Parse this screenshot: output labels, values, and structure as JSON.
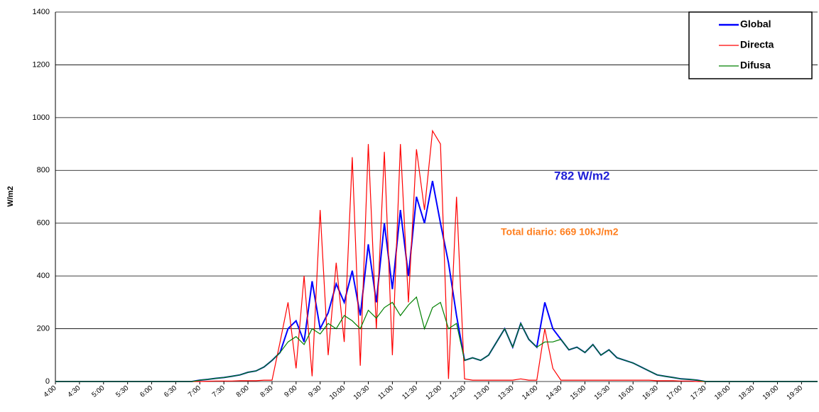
{
  "chart_data": {
    "type": "line",
    "y_label": "W/m2",
    "annotations": [
      "782  W/m2",
      "Total diario:  669  10kJ/m2"
    ],
    "categories": [
      "4:00",
      null,
      null,
      "4:30",
      null,
      null,
      "5:00",
      null,
      null,
      "5:30",
      null,
      null,
      "6:00",
      null,
      null,
      "6:30",
      null,
      null,
      "7:00",
      null,
      null,
      "7:30",
      null,
      null,
      "8:00",
      null,
      null,
      "8:30",
      null,
      null,
      "9:00",
      null,
      null,
      "9:30",
      null,
      null,
      "10:00",
      null,
      null,
      "10:30",
      null,
      null,
      "11:00",
      null,
      null,
      "11:30",
      null,
      null,
      "12:00",
      null,
      null,
      "12:30",
      null,
      null,
      "13:00",
      null,
      null,
      "13:30",
      null,
      null,
      "14:00",
      null,
      null,
      "14:30",
      null,
      null,
      "15:00",
      null,
      null,
      "15:30",
      null,
      null,
      "16:00",
      null,
      null,
      "16:30",
      null,
      null,
      "17:00",
      null,
      null,
      "17:30",
      null,
      null,
      "18:00",
      null,
      null,
      "18:30",
      null,
      null,
      "19:00",
      null,
      null,
      "19:30",
      null,
      null
    ],
    "series": [
      {
        "name": "Global",
        "color": "#0000ff",
        "values": [
          0,
          0,
          0,
          0,
          0,
          0,
          0,
          0,
          0,
          0,
          0,
          0,
          0,
          0,
          0,
          0,
          0,
          0,
          5,
          8,
          12,
          15,
          20,
          25,
          35,
          40,
          55,
          80,
          110,
          200,
          230,
          150,
          380,
          200,
          260,
          370,
          300,
          420,
          250,
          520,
          300,
          600,
          350,
          650,
          400,
          700,
          600,
          760,
          600,
          450,
          250,
          80,
          90,
          80,
          100,
          150,
          200,
          130,
          220,
          160,
          130,
          300,
          200,
          160,
          120,
          130,
          110,
          140,
          100,
          120,
          90,
          80,
          70,
          55,
          40,
          25,
          20,
          15,
          10,
          8,
          5,
          0,
          0,
          0,
          0,
          0,
          0,
          0,
          0,
          0,
          0,
          0,
          0,
          0,
          0,
          0
        ]
      },
      {
        "name": "Directa",
        "color": "#ff0000",
        "values": [
          0,
          0,
          0,
          0,
          0,
          0,
          0,
          0,
          0,
          0,
          0,
          0,
          0,
          0,
          0,
          0,
          0,
          0,
          0,
          1,
          2,
          2,
          2,
          3,
          3,
          3,
          5,
          5,
          150,
          300,
          50,
          400,
          20,
          650,
          100,
          450,
          150,
          850,
          60,
          900,
          200,
          870,
          100,
          900,
          300,
          880,
          650,
          950,
          900,
          10,
          700,
          10,
          5,
          5,
          5,
          5,
          5,
          5,
          10,
          5,
          5,
          200,
          50,
          5,
          5,
          5,
          5,
          5,
          5,
          5,
          5,
          5,
          5,
          5,
          5,
          3,
          3,
          3,
          2,
          2,
          0,
          0,
          0,
          0,
          0,
          0,
          0,
          0,
          0,
          0,
          0,
          0,
          0,
          0,
          0,
          0
        ]
      },
      {
        "name": "Difusa",
        "color": "#008000",
        "values": [
          0,
          0,
          0,
          0,
          0,
          0,
          0,
          0,
          0,
          0,
          0,
          0,
          0,
          0,
          0,
          0,
          0,
          0,
          5,
          8,
          12,
          15,
          20,
          25,
          35,
          40,
          55,
          80,
          110,
          150,
          170,
          140,
          200,
          180,
          220,
          200,
          250,
          230,
          200,
          270,
          240,
          280,
          300,
          250,
          290,
          320,
          200,
          280,
          300,
          200,
          220,
          80,
          90,
          80,
          100,
          150,
          200,
          130,
          220,
          160,
          130,
          150,
          150,
          160,
          120,
          130,
          110,
          140,
          100,
          120,
          90,
          80,
          70,
          55,
          40,
          25,
          20,
          15,
          10,
          8,
          5,
          0,
          0,
          0,
          0,
          0,
          0,
          0,
          0,
          0,
          0,
          0,
          0,
          0,
          0,
          0
        ]
      }
    ],
    "ylim": [
      0,
      1400
    ],
    "yticks": [
      0,
      200,
      400,
      600,
      800,
      1000,
      1200,
      1400
    ],
    "grid": true
  }
}
